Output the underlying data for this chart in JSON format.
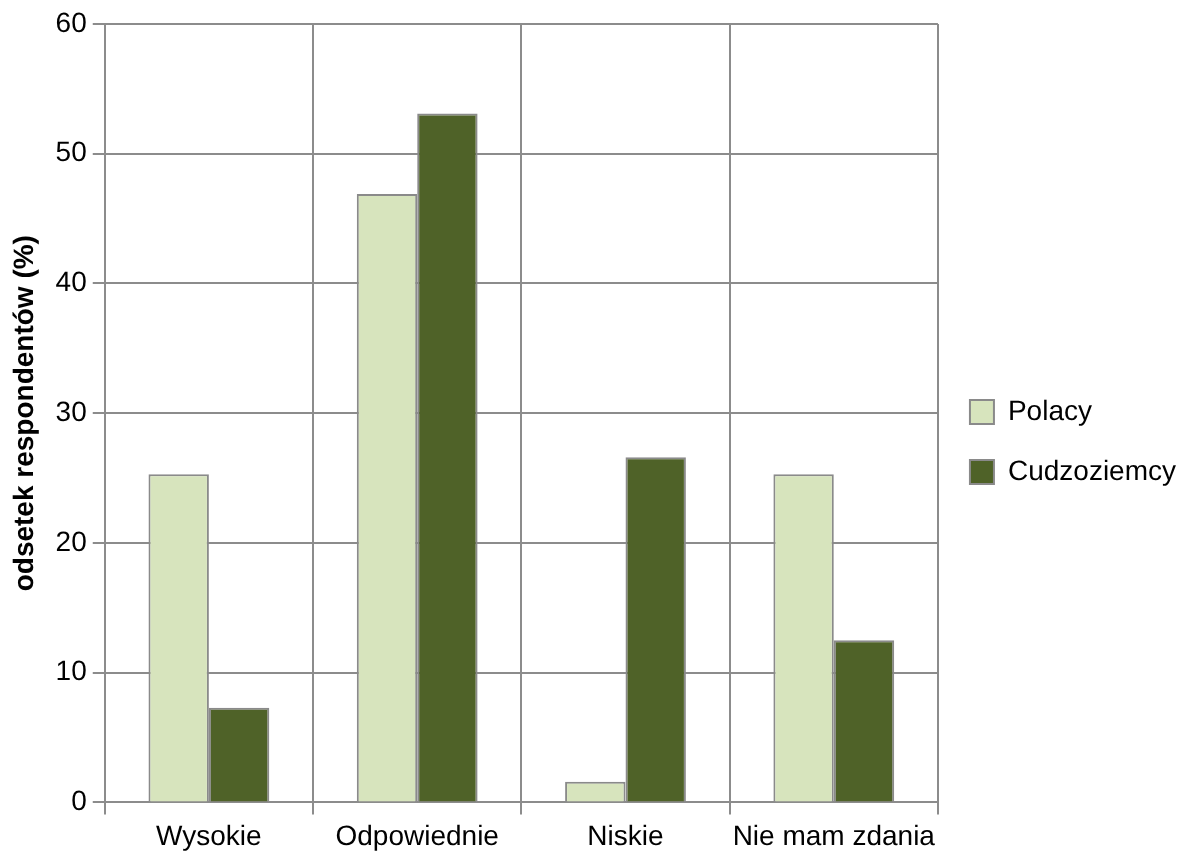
{
  "chart_data": {
    "type": "bar",
    "ylabel": "odsetek respondentów (%)",
    "categories": [
      "Wysokie",
      "Odpowiednie",
      "Niskie",
      "Nie mam zdania"
    ],
    "series": [
      {
        "name": "Polacy",
        "color": "#d7e4bd",
        "values": [
          25.3,
          46.9,
          1.6,
          25.3
        ]
      },
      {
        "name": "Cudzoziemcy",
        "color": "#4f6228",
        "values": [
          7.3,
          53.1,
          26.6,
          12.5
        ]
      }
    ],
    "ylim": [
      0,
      60
    ],
    "yticks": [
      0,
      10,
      20,
      30,
      40,
      50,
      60
    ],
    "grid": true,
    "legend": "right"
  }
}
